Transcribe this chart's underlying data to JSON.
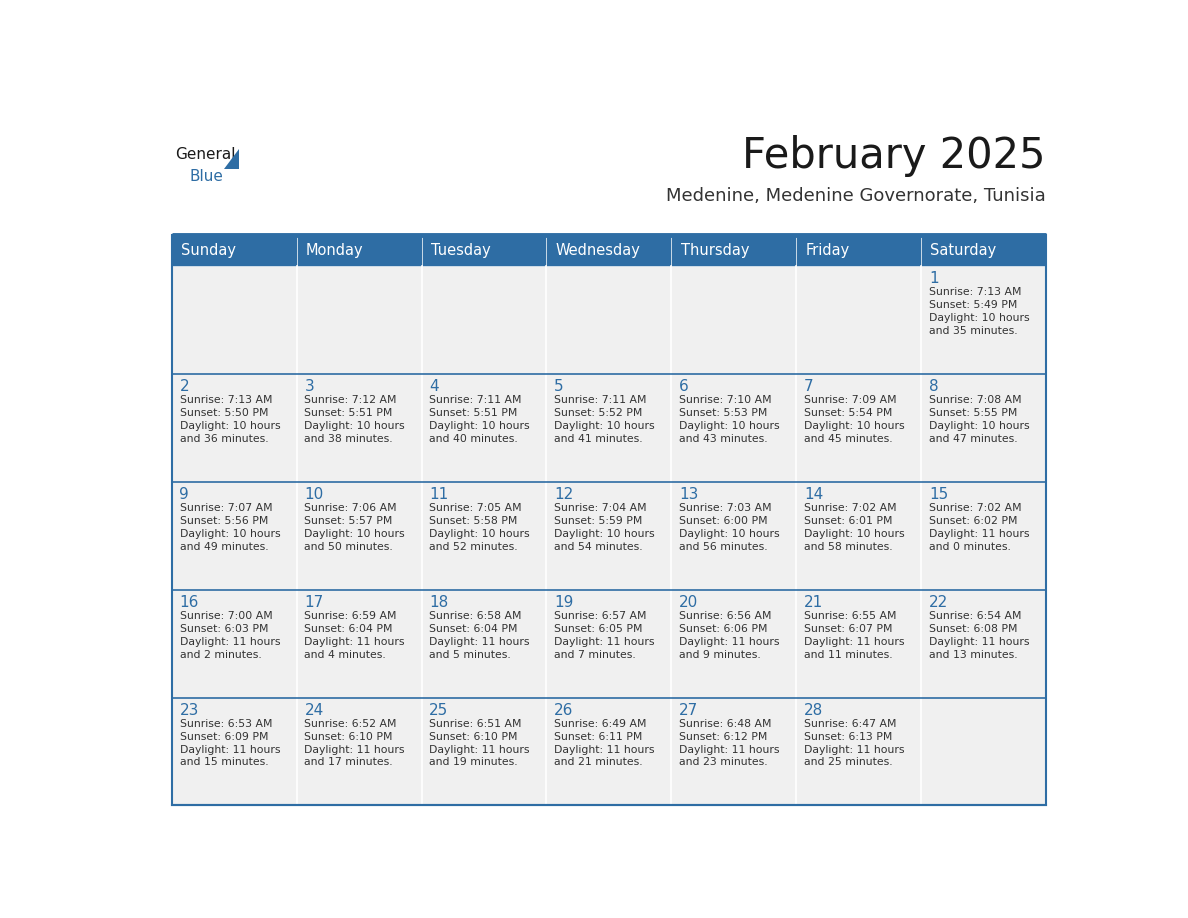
{
  "title": "February 2025",
  "subtitle": "Medenine, Medenine Governorate, Tunisia",
  "days_of_week": [
    "Sunday",
    "Monday",
    "Tuesday",
    "Wednesday",
    "Thursday",
    "Friday",
    "Saturday"
  ],
  "header_bg": "#2E6DA4",
  "header_text": "#FFFFFF",
  "cell_bg": "#F0F0F0",
  "day_number_color": "#2E6DA4",
  "info_text_color": "#333333",
  "border_color": "#2E6DA4",
  "row_divider_color": "#2E6DA4",
  "title_color": "#1a1a1a",
  "subtitle_color": "#333333",
  "logo_general_color": "#1a1a1a",
  "logo_blue_color": "#2E6DA4",
  "calendar_data": [
    [
      null,
      null,
      null,
      null,
      null,
      null,
      {
        "day": 1,
        "sunrise": "7:13 AM",
        "sunset": "5:49 PM",
        "daylight": "10 hours\nand 35 minutes."
      }
    ],
    [
      {
        "day": 2,
        "sunrise": "7:13 AM",
        "sunset": "5:50 PM",
        "daylight": "10 hours\nand 36 minutes."
      },
      {
        "day": 3,
        "sunrise": "7:12 AM",
        "sunset": "5:51 PM",
        "daylight": "10 hours\nand 38 minutes."
      },
      {
        "day": 4,
        "sunrise": "7:11 AM",
        "sunset": "5:51 PM",
        "daylight": "10 hours\nand 40 minutes."
      },
      {
        "day": 5,
        "sunrise": "7:11 AM",
        "sunset": "5:52 PM",
        "daylight": "10 hours\nand 41 minutes."
      },
      {
        "day": 6,
        "sunrise": "7:10 AM",
        "sunset": "5:53 PM",
        "daylight": "10 hours\nand 43 minutes."
      },
      {
        "day": 7,
        "sunrise": "7:09 AM",
        "sunset": "5:54 PM",
        "daylight": "10 hours\nand 45 minutes."
      },
      {
        "day": 8,
        "sunrise": "7:08 AM",
        "sunset": "5:55 PM",
        "daylight": "10 hours\nand 47 minutes."
      }
    ],
    [
      {
        "day": 9,
        "sunrise": "7:07 AM",
        "sunset": "5:56 PM",
        "daylight": "10 hours\nand 49 minutes."
      },
      {
        "day": 10,
        "sunrise": "7:06 AM",
        "sunset": "5:57 PM",
        "daylight": "10 hours\nand 50 minutes."
      },
      {
        "day": 11,
        "sunrise": "7:05 AM",
        "sunset": "5:58 PM",
        "daylight": "10 hours\nand 52 minutes."
      },
      {
        "day": 12,
        "sunrise": "7:04 AM",
        "sunset": "5:59 PM",
        "daylight": "10 hours\nand 54 minutes."
      },
      {
        "day": 13,
        "sunrise": "7:03 AM",
        "sunset": "6:00 PM",
        "daylight": "10 hours\nand 56 minutes."
      },
      {
        "day": 14,
        "sunrise": "7:02 AM",
        "sunset": "6:01 PM",
        "daylight": "10 hours\nand 58 minutes."
      },
      {
        "day": 15,
        "sunrise": "7:02 AM",
        "sunset": "6:02 PM",
        "daylight": "11 hours\nand 0 minutes."
      }
    ],
    [
      {
        "day": 16,
        "sunrise": "7:00 AM",
        "sunset": "6:03 PM",
        "daylight": "11 hours\nand 2 minutes."
      },
      {
        "day": 17,
        "sunrise": "6:59 AM",
        "sunset": "6:04 PM",
        "daylight": "11 hours\nand 4 minutes."
      },
      {
        "day": 18,
        "sunrise": "6:58 AM",
        "sunset": "6:04 PM",
        "daylight": "11 hours\nand 5 minutes."
      },
      {
        "day": 19,
        "sunrise": "6:57 AM",
        "sunset": "6:05 PM",
        "daylight": "11 hours\nand 7 minutes."
      },
      {
        "day": 20,
        "sunrise": "6:56 AM",
        "sunset": "6:06 PM",
        "daylight": "11 hours\nand 9 minutes."
      },
      {
        "day": 21,
        "sunrise": "6:55 AM",
        "sunset": "6:07 PM",
        "daylight": "11 hours\nand 11 minutes."
      },
      {
        "day": 22,
        "sunrise": "6:54 AM",
        "sunset": "6:08 PM",
        "daylight": "11 hours\nand 13 minutes."
      }
    ],
    [
      {
        "day": 23,
        "sunrise": "6:53 AM",
        "sunset": "6:09 PM",
        "daylight": "11 hours\nand 15 minutes."
      },
      {
        "day": 24,
        "sunrise": "6:52 AM",
        "sunset": "6:10 PM",
        "daylight": "11 hours\nand 17 minutes."
      },
      {
        "day": 25,
        "sunrise": "6:51 AM",
        "sunset": "6:10 PM",
        "daylight": "11 hours\nand 19 minutes."
      },
      {
        "day": 26,
        "sunrise": "6:49 AM",
        "sunset": "6:11 PM",
        "daylight": "11 hours\nand 21 minutes."
      },
      {
        "day": 27,
        "sunrise": "6:48 AM",
        "sunset": "6:12 PM",
        "daylight": "11 hours\nand 23 minutes."
      },
      {
        "day": 28,
        "sunrise": "6:47 AM",
        "sunset": "6:13 PM",
        "daylight": "11 hours\nand 25 minutes."
      },
      null
    ]
  ]
}
